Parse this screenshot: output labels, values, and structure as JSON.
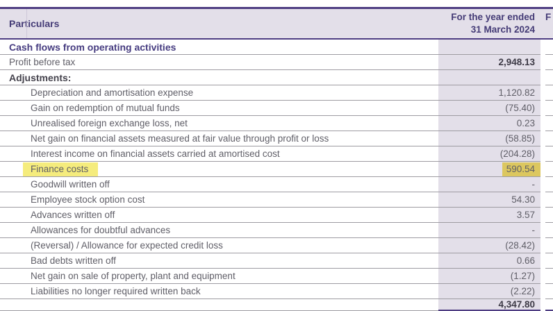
{
  "table": {
    "header": {
      "particulars": "Particulars",
      "period_line1": "For the year ended",
      "period_line2": "31 March 2024",
      "next_column_partial": "F"
    },
    "rows": [
      {
        "label": "Cash flows from operating activities",
        "value": "",
        "cls": "section",
        "value_bold": false,
        "highlight": false
      },
      {
        "label": "Profit before tax",
        "value": "2,948.13",
        "cls": "plain",
        "value_bold": true,
        "highlight": false
      },
      {
        "label": "Adjustments:",
        "value": "",
        "cls": "subhead",
        "value_bold": false,
        "highlight": false
      },
      {
        "label": "Depreciation and amortisation expense",
        "value": "1,120.82",
        "cls": "sub",
        "value_bold": false,
        "highlight": false
      },
      {
        "label": "Gain on redemption of mutual funds",
        "value": "(75.40)",
        "cls": "sub",
        "value_bold": false,
        "highlight": false
      },
      {
        "label": "Unrealised foreign exchange loss, net",
        "value": "0.23",
        "cls": "sub",
        "value_bold": false,
        "highlight": false
      },
      {
        "label": "Net gain on financial assets measured at fair value through profit or loss",
        "value": "(58.85)",
        "cls": "sub",
        "value_bold": false,
        "highlight": false
      },
      {
        "label": "Interest income on financial assets carried at amortised cost",
        "value": "(204.28)",
        "cls": "sub",
        "value_bold": false,
        "highlight": false
      },
      {
        "label": "Finance costs",
        "value": "590.54",
        "cls": "sub",
        "value_bold": false,
        "highlight": true
      },
      {
        "label": "Goodwill written off",
        "value": "-",
        "cls": "sub",
        "value_bold": false,
        "highlight": false
      },
      {
        "label": "Employee stock option cost",
        "value": "54.30",
        "cls": "sub",
        "value_bold": false,
        "highlight": false
      },
      {
        "label": "Advances written off",
        "value": "3.57",
        "cls": "sub",
        "value_bold": false,
        "highlight": false
      },
      {
        "label": "Allowances for doubtful advances",
        "value": "-",
        "cls": "sub",
        "value_bold": false,
        "highlight": false
      },
      {
        "label": "(Reversal) / Allowance for expected credit loss",
        "value": "(28.42)",
        "cls": "sub",
        "value_bold": false,
        "highlight": false
      },
      {
        "label": "Bad debts written off",
        "value": "0.66",
        "cls": "sub",
        "value_bold": false,
        "highlight": false
      },
      {
        "label": "Net gain on sale of property, plant and equipment",
        "value": "(1.27)",
        "cls": "sub",
        "value_bold": false,
        "highlight": false
      },
      {
        "label": "Liabilities no longer required written back",
        "value": "(2.22)",
        "cls": "sub",
        "value_bold": false,
        "highlight": false
      },
      {
        "label": "",
        "value": "4,347.80",
        "cls": "total",
        "value_bold": true,
        "highlight": false
      }
    ]
  },
  "colors": {
    "accent_purple_border": "#4e3d82",
    "header_text_purple": "#443b76",
    "section_text_purple": "#463c80",
    "column_background_lavender": "#e3dfe9",
    "highlight_yellow": "#f5ec7d",
    "highlight_yellow_on_lavender": "#dcc75f",
    "row_line_gray": "#9d9ba1",
    "body_text_gray": "#5f5e67",
    "bold_value_dark": "#3d3a46"
  }
}
